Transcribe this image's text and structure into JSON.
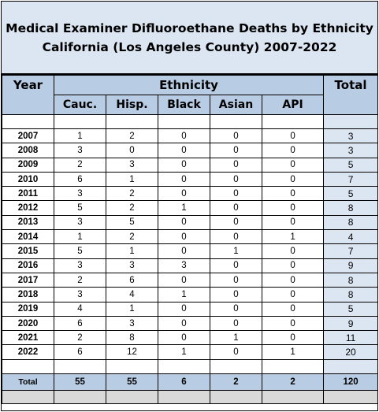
{
  "title": {
    "line1": "Medical Examiner Difluoroethane Deaths by Ethnicity",
    "line2": "California (Los Angeles County) 2007-2022"
  },
  "headers": {
    "year": "Year",
    "ethnicity": "Ethnicity",
    "total": "Total",
    "cauc": "Cauc.",
    "hisp": "Hisp.",
    "black": "Black",
    "asian": "Asian",
    "api": "API"
  },
  "rows": [
    {
      "year": "2007",
      "cauc": "1",
      "hisp": "2",
      "black": "0",
      "asian": "0",
      "api": "0",
      "total": "3"
    },
    {
      "year": "2008",
      "cauc": "3",
      "hisp": "0",
      "black": "0",
      "asian": "0",
      "api": "0",
      "total": "3"
    },
    {
      "year": "2009",
      "cauc": "2",
      "hisp": "3",
      "black": "0",
      "asian": "0",
      "api": "0",
      "total": "5"
    },
    {
      "year": "2010",
      "cauc": "6",
      "hisp": "1",
      "black": "0",
      "asian": "0",
      "api": "0",
      "total": "7"
    },
    {
      "year": "2011",
      "cauc": "3",
      "hisp": "2",
      "black": "0",
      "asian": "0",
      "api": "0",
      "total": "5"
    },
    {
      "year": "2012",
      "cauc": "5",
      "hisp": "2",
      "black": "1",
      "asian": "0",
      "api": "0",
      "total": "8"
    },
    {
      "year": "2013",
      "cauc": "3",
      "hisp": "5",
      "black": "0",
      "asian": "0",
      "api": "0",
      "total": "8"
    },
    {
      "year": "2014",
      "cauc": "1",
      "hisp": "2",
      "black": "0",
      "asian": "0",
      "api": "1",
      "total": "4"
    },
    {
      "year": "2015",
      "cauc": "5",
      "hisp": "1",
      "black": "0",
      "asian": "1",
      "api": "0",
      "total": "7"
    },
    {
      "year": "2016",
      "cauc": "3",
      "hisp": "3",
      "black": "3",
      "asian": "0",
      "api": "0",
      "total": "9"
    },
    {
      "year": "2017",
      "cauc": "2",
      "hisp": "6",
      "black": "0",
      "asian": "0",
      "api": "0",
      "total": "8"
    },
    {
      "year": "2018",
      "cauc": "3",
      "hisp": "4",
      "black": "1",
      "asian": "0",
      "api": "0",
      "total": "8"
    },
    {
      "year": "2019",
      "cauc": "4",
      "hisp": "1",
      "black": "0",
      "asian": "0",
      "api": "0",
      "total": "5"
    },
    {
      "year": "2020",
      "cauc": "6",
      "hisp": "3",
      "black": "0",
      "asian": "0",
      "api": "0",
      "total": "9"
    },
    {
      "year": "2021",
      "cauc": "2",
      "hisp": "8",
      "black": "0",
      "asian": "1",
      "api": "0",
      "total": "11"
    },
    {
      "year": "2022",
      "cauc": "6",
      "hisp": "12",
      "black": "1",
      "asian": "0",
      "api": "1",
      "total": "20"
    }
  ],
  "totals": {
    "label": "Total",
    "cauc": "55",
    "hisp": "55",
    "black": "6",
    "asian": "2",
    "api": "2",
    "total": "120"
  },
  "colors": {
    "header_fill": "#b8cce4",
    "title_fill": "#dce6f2",
    "footer_fill": "#d9d9d9"
  }
}
